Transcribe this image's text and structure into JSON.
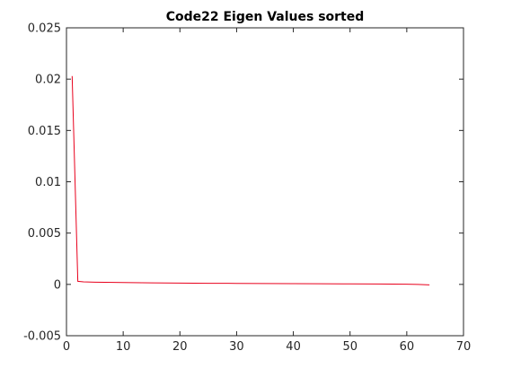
{
  "chart_data": {
    "type": "line",
    "title": "Code22 Eigen Values sorted",
    "xlabel": "",
    "ylabel": "",
    "xlim": [
      0,
      70
    ],
    "ylim": [
      -0.005,
      0.025
    ],
    "x_ticks": [
      0,
      10,
      20,
      30,
      40,
      50,
      60,
      70
    ],
    "x_tick_labels": [
      "0",
      "10",
      "20",
      "30",
      "40",
      "50",
      "60",
      "70"
    ],
    "y_ticks": [
      -0.005,
      0,
      0.005,
      0.01,
      0.015,
      0.02,
      0.025
    ],
    "y_tick_labels": [
      "-0.005",
      "0",
      "0.005",
      "0.01",
      "0.015",
      "0.02",
      "0.025"
    ],
    "grid": false,
    "series": [
      {
        "color": "#e8001c",
        "x": [
          1,
          2,
          3,
          5,
          10,
          15,
          20,
          25,
          30,
          35,
          40,
          45,
          50,
          55,
          60,
          62,
          64
        ],
        "y": [
          0.0203,
          0.0003,
          0.00025,
          0.00022,
          0.00018,
          0.00015,
          0.00013,
          0.00011,
          0.0001,
          8e-05,
          7e-05,
          6e-05,
          5e-05,
          4e-05,
          2e-05,
          0.0,
          -5e-05
        ]
      }
    ]
  }
}
